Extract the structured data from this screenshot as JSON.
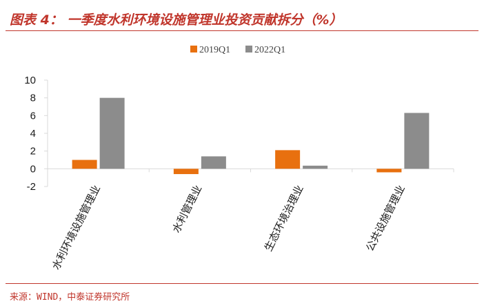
{
  "header": {
    "title": "图表 4： 一季度水利环境设施管理业投资贡献拆分（%）"
  },
  "footer": {
    "source": "来源：WIND，中泰证券研究所"
  },
  "chart_data": {
    "type": "bar",
    "categories": [
      "水利环境设施管理业",
      "水利管理业",
      "生态环境治理业",
      "公共设施管理业"
    ],
    "series": [
      {
        "name": "2019Q1",
        "values": [
          1.0,
          -0.6,
          2.1,
          -0.4
        ],
        "color": "#e8700f"
      },
      {
        "name": "2022Q1",
        "values": [
          8.0,
          1.4,
          0.35,
          6.3
        ],
        "color": "#8c8c8c"
      }
    ],
    "ylim": [
      -2,
      10
    ],
    "yticks": [
      -2,
      0,
      2,
      4,
      6,
      8,
      10
    ],
    "legend_position": "top-center",
    "grid": false,
    "axis_color": "#d9d9d9"
  }
}
